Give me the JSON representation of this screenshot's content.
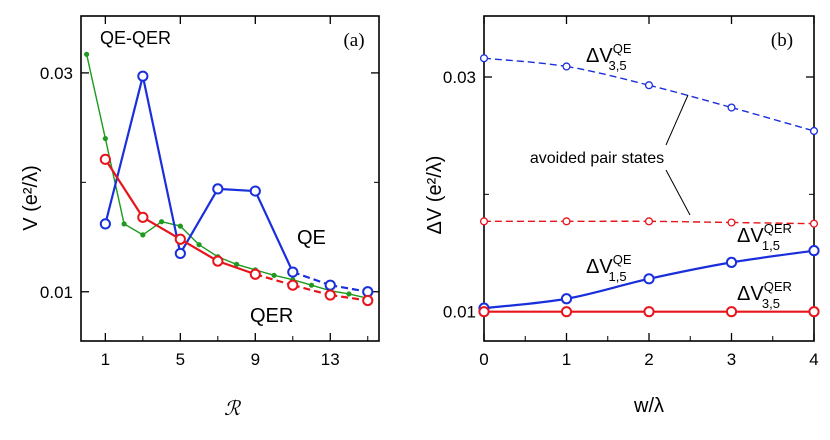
{
  "chart_data": [
    {
      "type": "line",
      "panel_label": "(a)",
      "xlabel": "ℛ",
      "ylabel": "V (e²/λ)",
      "xlim": [
        -0.3,
        15.6
      ],
      "ylim": [
        0.0055,
        0.0352
      ],
      "x_ticks": [
        "1",
        "5",
        "9",
        "13"
      ],
      "y_ticks": [
        "0.01",
        "0.03"
      ],
      "series": [
        {
          "name": "QE-QER",
          "color": "#1f9a1f",
          "x": [
            0,
            1,
            2,
            3,
            4,
            5,
            6,
            7,
            8,
            9,
            10,
            11,
            12,
            13,
            14,
            15
          ],
          "y": [
            0.0317,
            0.024,
            0.0162,
            0.0152,
            0.0164,
            0.016,
            0.0143,
            0.0132,
            0.0125,
            0.012,
            0.0115,
            0.0111,
            0.0106,
            0.0101,
            0.0098,
            0.0094
          ]
        },
        {
          "name": "QE",
          "color": "#1a2fdc",
          "x": [
            1,
            3,
            5,
            7,
            9,
            11,
            13,
            15
          ],
          "y": [
            0.0162,
            0.0297,
            0.0135,
            0.0194,
            0.0192,
            0.0118,
            0.0106,
            0.01
          ]
        },
        {
          "name": "QER",
          "color": "#e8141c",
          "x": [
            1,
            3,
            5,
            7,
            9,
            11,
            13,
            15
          ],
          "y": [
            0.0221,
            0.0168,
            0.0148,
            0.0128,
            0.0116,
            0.0106,
            0.0097,
            0.0092
          ]
        }
      ],
      "annotations": [
        "QE-QER",
        "QE",
        "QER"
      ]
    },
    {
      "type": "line",
      "panel_label": "(b)",
      "xlabel": "w/λ",
      "ylabel": "ΔV (e²/λ)",
      "xlim": [
        0,
        4
      ],
      "ylim": [
        0.0075,
        0.0352
      ],
      "x_ticks": [
        "0",
        "1",
        "2",
        "3",
        "4"
      ],
      "y_ticks": [
        "0.01",
        "0.03"
      ],
      "series": [
        {
          "name": "ΔV QE 3,5",
          "color": "#1a2fdc",
          "x": [
            0,
            1,
            2,
            3,
            4
          ],
          "y": [
            0.0316,
            0.0309,
            0.0293,
            0.0274,
            0.0254
          ]
        },
        {
          "name": "ΔV QER 1,5",
          "color": "#e8141c",
          "x": [
            0,
            1,
            2,
            3,
            4
          ],
          "y": [
            0.0177,
            0.0177,
            0.0177,
            0.0176,
            0.0175
          ]
        },
        {
          "name": "ΔV QE 1,5",
          "color": "#1a2fdc",
          "x": [
            0,
            1,
            2,
            3,
            4
          ],
          "y": [
            0.0103,
            0.0111,
            0.0128,
            0.0142,
            0.0152
          ]
        },
        {
          "name": "ΔV QER 3,5",
          "color": "#e8141c",
          "x": [
            0,
            1,
            2,
            3,
            4
          ],
          "y": [
            0.01,
            0.01,
            0.01,
            0.01,
            0.01
          ]
        }
      ],
      "annotation_text": "avoided pair states",
      "series_labels": [
        {
          "prefix": "ΔV",
          "sup": "QE",
          "sub": "3,5"
        },
        {
          "prefix": "ΔV",
          "sup": "QER",
          "sub": "1,5"
        },
        {
          "prefix": "ΔV",
          "sup": "QE",
          "sub": "1,5"
        },
        {
          "prefix": "ΔV",
          "sup": "QER",
          "sub": "3,5"
        }
      ]
    }
  ]
}
